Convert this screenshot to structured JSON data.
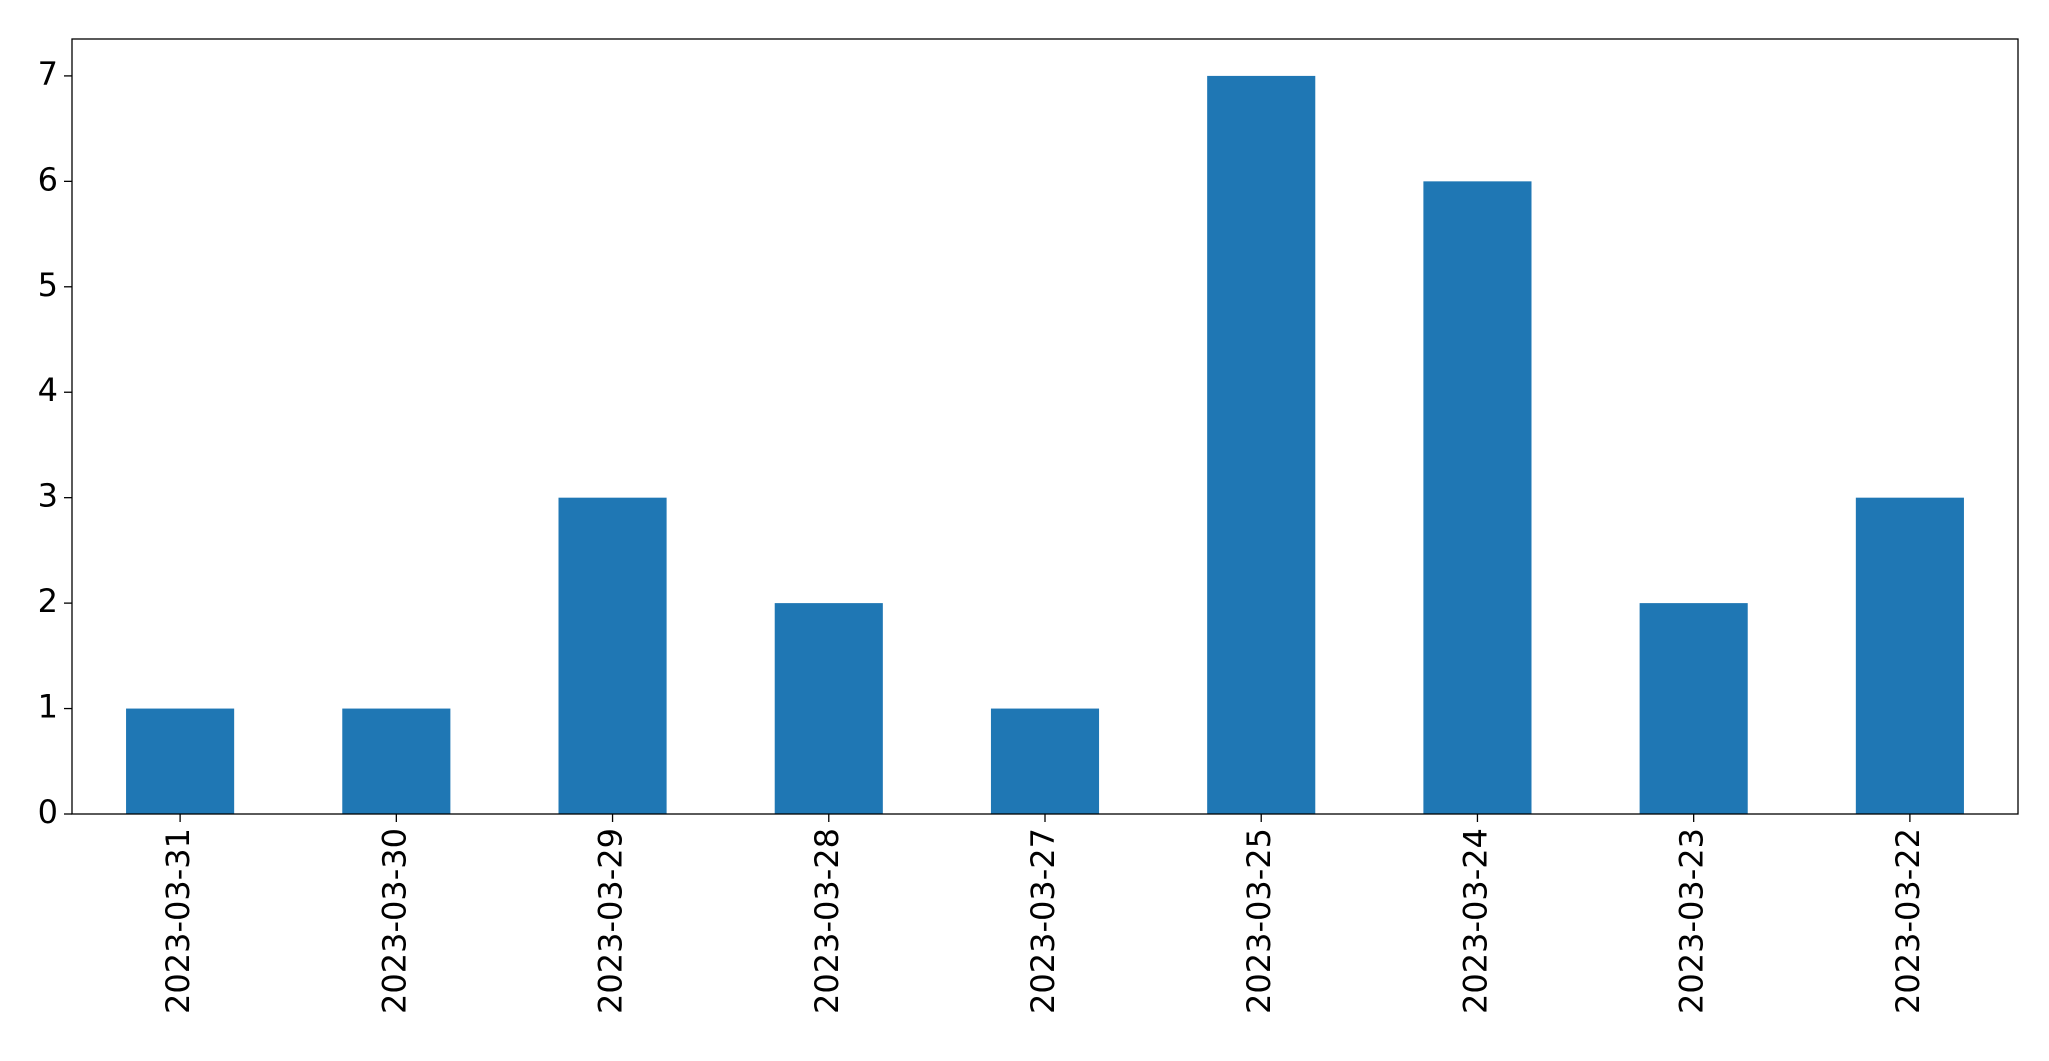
{
  "chart_data": {
    "type": "bar",
    "categories": [
      "2023-03-31",
      "2023-03-30",
      "2023-03-29",
      "2023-03-28",
      "2023-03-27",
      "2023-03-25",
      "2023-03-24",
      "2023-03-23",
      "2023-03-22"
    ],
    "values": [
      1,
      1,
      3,
      2,
      1,
      7,
      6,
      2,
      3
    ],
    "color": "#1f77b4",
    "ylim": [
      0,
      7.35
    ],
    "yticks": [
      0,
      1,
      2,
      3,
      4,
      5,
      6,
      7
    ],
    "grid": false
  }
}
